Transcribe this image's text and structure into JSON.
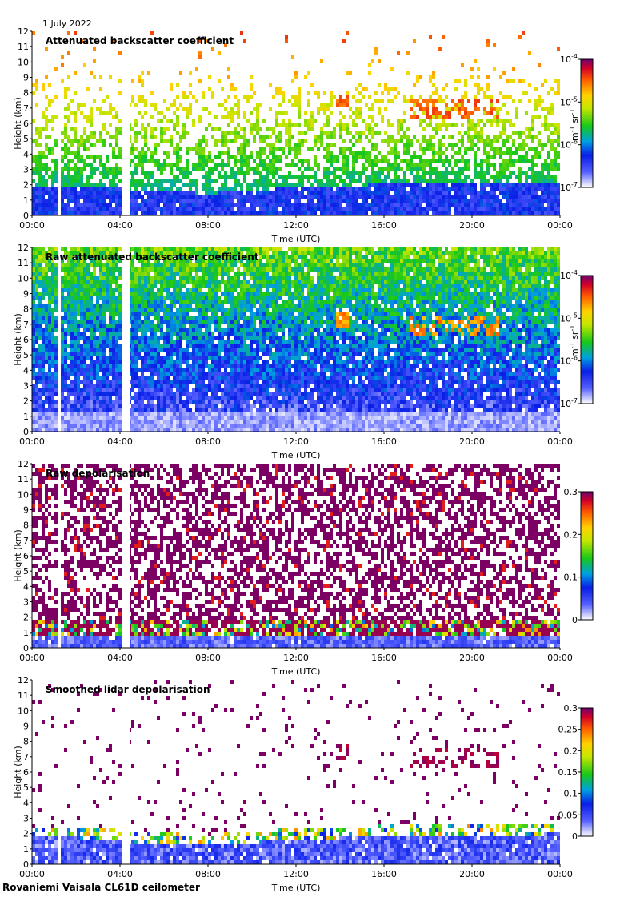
{
  "header": {
    "date": "1 July 2022"
  },
  "footer": {
    "station": "Rovaniemi Vaisala CL61D ceilometer"
  },
  "chart_data": [
    {
      "type": "heatmap",
      "title": "Attenuated backscatter coefficient",
      "xlabel": "Time (UTC)",
      "ylabel": "Height (km)",
      "x_ticks": [
        "00:00",
        "04:00",
        "08:00",
        "12:00",
        "16:00",
        "20:00",
        "00:00"
      ],
      "y_ticks": [
        "0",
        "1",
        "2",
        "3",
        "4",
        "5",
        "6",
        "7",
        "8",
        "9",
        "10",
        "11",
        "12"
      ],
      "ylim": [
        0,
        12
      ],
      "colorbar": {
        "scale": "log",
        "ticks": [
          "10-4",
          "10-5",
          "10-6",
          "10-7"
        ],
        "unit": "m-1 sr-1"
      },
      "features": {
        "boundary_layer_top_km": [
          1.9,
          1.9,
          1.7,
          1.5,
          1.4,
          1.6,
          1.8,
          1.9,
          2.0,
          2.0,
          2.1,
          2.1,
          2.2
        ],
        "data_gaps_utc": [
          "00:55",
          "03:55-04:10"
        ],
        "cloud_patches": [
          "14:00 at 7.3 km",
          "17:30-21:00 at 6.5-7.5 km"
        ]
      }
    },
    {
      "type": "heatmap",
      "title": "Raw attenuated backscatter coefficient",
      "xlabel": "Time (UTC)",
      "ylabel": "Height (km)",
      "x_ticks": [
        "00:00",
        "04:00",
        "08:00",
        "12:00",
        "16:00",
        "20:00",
        "00:00"
      ],
      "y_ticks": [
        "0",
        "1",
        "2",
        "3",
        "4",
        "5",
        "6",
        "7",
        "8",
        "9",
        "10",
        "11",
        "12"
      ],
      "ylim": [
        0,
        12
      ],
      "colorbar": {
        "scale": "log",
        "ticks": [
          "10-4",
          "10-5",
          "10-6",
          "10-7"
        ],
        "unit": "m-1 sr-1"
      }
    },
    {
      "type": "heatmap",
      "title": "Raw depolarisation",
      "xlabel": "Time (UTC)",
      "ylabel": "Height (km)",
      "x_ticks": [
        "00:00",
        "04:00",
        "08:00",
        "12:00",
        "16:00",
        "20:00",
        "00:00"
      ],
      "y_ticks": [
        "0",
        "1",
        "2",
        "3",
        "4",
        "5",
        "6",
        "7",
        "8",
        "9",
        "10",
        "11",
        "12"
      ],
      "ylim": [
        0,
        12
      ],
      "colorbar": {
        "scale": "linear",
        "range": [
          0,
          0.3
        ],
        "ticks": [
          "0.3",
          "0.2",
          "0.1",
          "0"
        ]
      }
    },
    {
      "type": "heatmap",
      "title": "Smoothed lidar depolarisation",
      "xlabel": "Time (UTC)",
      "ylabel": "Height (km)",
      "x_ticks": [
        "00:00",
        "04:00",
        "08:00",
        "12:00",
        "16:00",
        "20:00",
        "00:00"
      ],
      "y_ticks": [
        "0",
        "1",
        "2",
        "3",
        "4",
        "5",
        "6",
        "7",
        "8",
        "9",
        "10",
        "11",
        "12"
      ],
      "ylim": [
        0,
        12
      ],
      "colorbar": {
        "scale": "linear",
        "range": [
          0,
          0.3
        ],
        "ticks": [
          "0.3",
          "0.25",
          "0.2",
          "0.15",
          "0.1",
          "0.05",
          "0"
        ]
      }
    }
  ]
}
